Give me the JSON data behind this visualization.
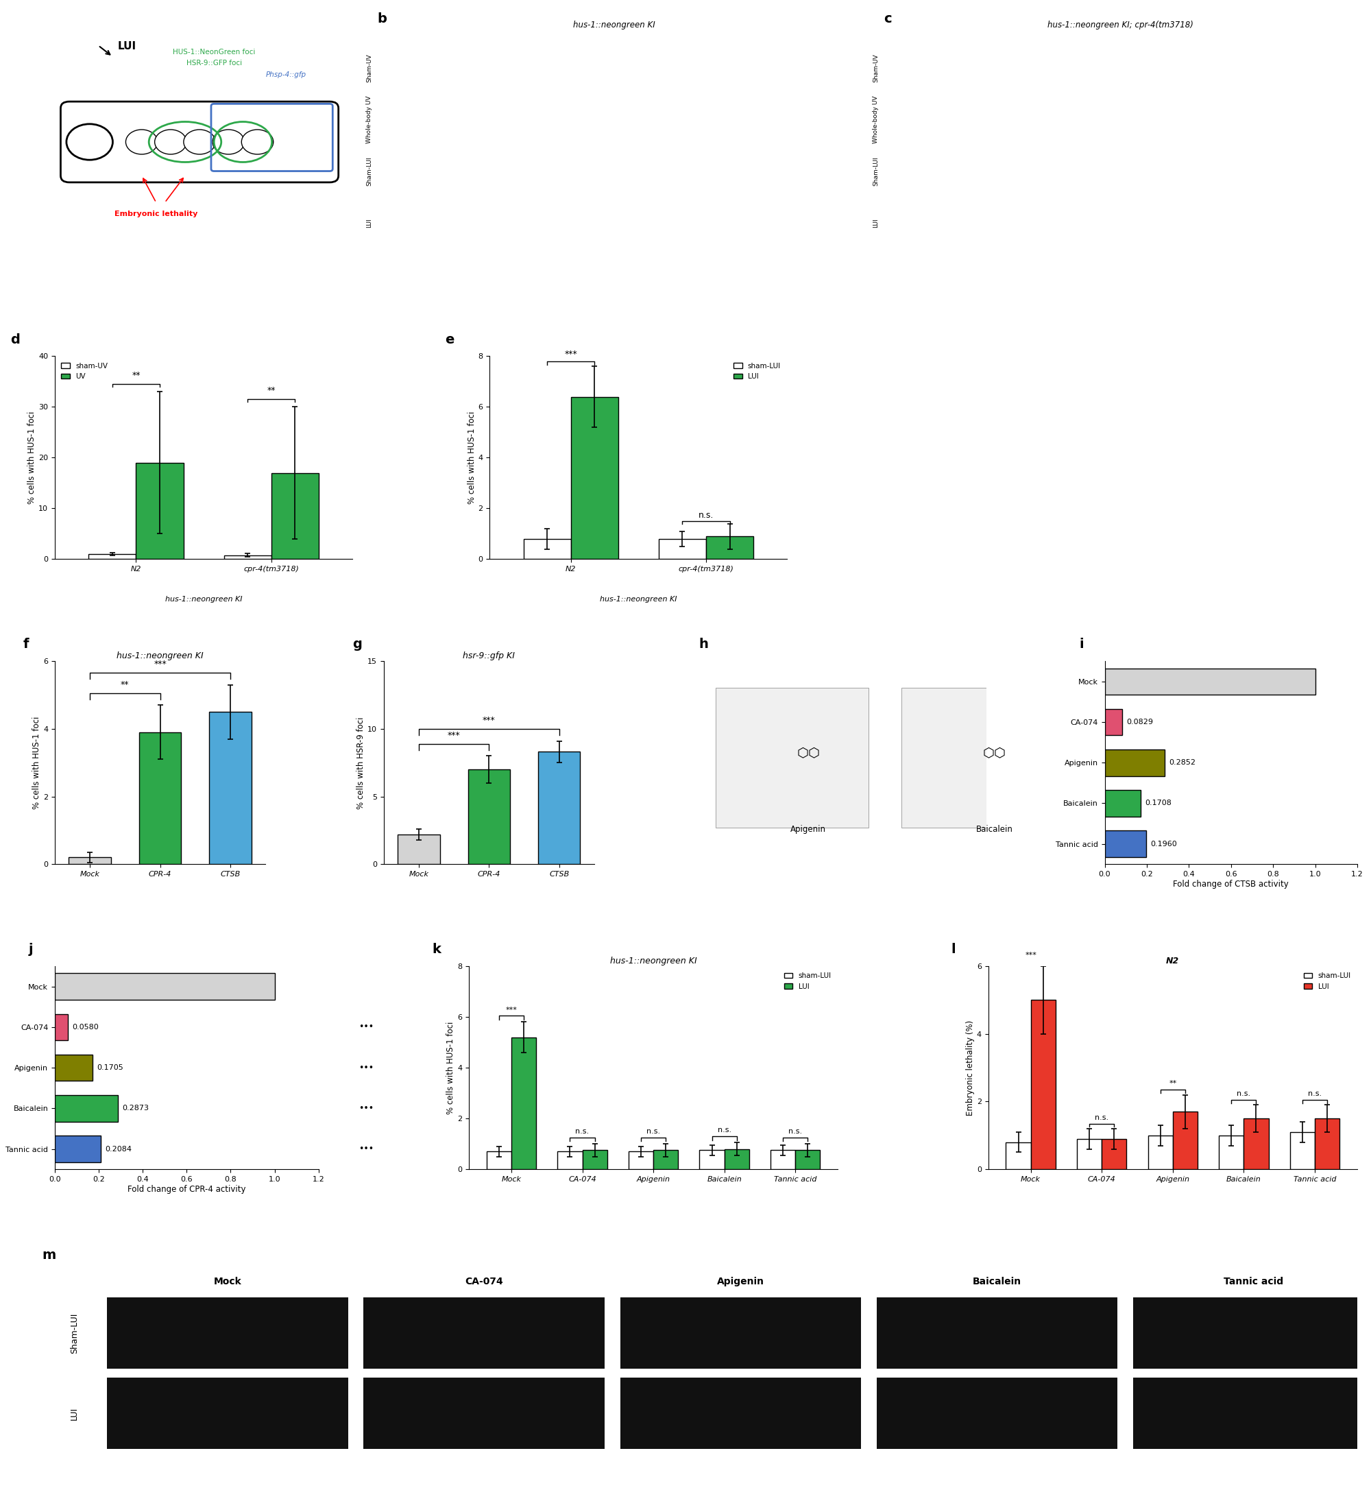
{
  "panel_d": {
    "title": "",
    "subtitle": "hus-1::neongreen KI",
    "xlabel_groups": [
      "N2",
      "cpr-4(tm3718)"
    ],
    "group_xlabel": "hus-1::neongreen KI",
    "legend": [
      "sham-UV",
      "UV"
    ],
    "bar_colors": [
      "white",
      "#2da84a"
    ],
    "values": [
      [
        1.0,
        19.0
      ],
      [
        0.8,
        17.0
      ]
    ],
    "errors": [
      [
        0.3,
        14.0
      ],
      [
        0.3,
        13.0
      ]
    ],
    "ylabel": "% cells with HUS-1 foci",
    "ylim": [
      0,
      40
    ],
    "yticks": [
      0,
      10,
      20,
      30,
      40
    ],
    "significance": [
      "**",
      "**"
    ]
  },
  "panel_e": {
    "title": "",
    "subtitle": "hus-1::neongreen KI",
    "xlabel_groups": [
      "N2",
      "cpr-4(tm3718)"
    ],
    "group_xlabel": "hus-1::neongreen KI",
    "legend": [
      "sham-LUI",
      "LUI"
    ],
    "bar_colors": [
      "white",
      "#2da84a"
    ],
    "values": [
      [
        0.8,
        6.4
      ],
      [
        0.8,
        0.9
      ]
    ],
    "errors": [
      [
        0.4,
        1.2
      ],
      [
        0.3,
        0.5
      ]
    ],
    "ylabel": "% cells with HUS-1 foci",
    "ylim": [
      0,
      8
    ],
    "yticks": [
      0,
      2,
      4,
      6,
      8
    ],
    "significance": [
      "***",
      "n.s."
    ]
  },
  "panel_f": {
    "title": "hus-1::neongreen KI",
    "categories": [
      "Mock",
      "CPR-4",
      "CTSB"
    ],
    "bar_colors": [
      "#d3d3d3",
      "#2da84a",
      "#4fa8d8"
    ],
    "values": [
      0.2,
      3.9,
      4.5
    ],
    "errors": [
      0.15,
      0.8,
      0.8
    ],
    "ylabel": "% cells with HUS-1 foci",
    "ylim": [
      0,
      6
    ],
    "yticks": [
      0,
      2,
      4,
      6
    ],
    "significance_pairs": [
      [
        "Mock",
        "CPR-4",
        "**"
      ],
      [
        "Mock",
        "CTSB",
        "***"
      ]
    ]
  },
  "panel_g": {
    "title": "hsr-9::gfp KI",
    "categories": [
      "Mock",
      "CPR-4",
      "CTSB"
    ],
    "bar_colors": [
      "#d3d3d3",
      "#2da84a",
      "#4fa8d8"
    ],
    "values": [
      2.2,
      7.0,
      8.3
    ],
    "errors": [
      0.4,
      1.0,
      0.8
    ],
    "ylabel": "% cells with HSR-9 foci",
    "ylim": [
      0,
      15
    ],
    "yticks": [
      0,
      5,
      10,
      15
    ],
    "significance_pairs": [
      [
        "Mock",
        "CPR-4",
        "***"
      ],
      [
        "Mock",
        "CTSB",
        "***"
      ]
    ]
  },
  "panel_i": {
    "title": "",
    "categories": [
      "Tannic acid",
      "Baicalein",
      "Apigenin",
      "CA-074",
      "Mock"
    ],
    "bar_colors": [
      "#4472c4",
      "#2da84a",
      "#7f7f00",
      "#e05070",
      "#d3d3d3"
    ],
    "values": [
      0.196,
      0.1708,
      0.2852,
      0.0829,
      1.0
    ],
    "labels": [
      "0.1960",
      "0.1708",
      "0.2852",
      "0.0829",
      ""
    ],
    "xlabel": "Fold change of CTSB activity",
    "xlim": [
      0,
      1.2
    ],
    "xticks": [
      0.0,
      0.2,
      0.4,
      0.6,
      0.8,
      1.0,
      1.2
    ]
  },
  "panel_j": {
    "title": "",
    "categories": [
      "Tannic acid",
      "Baicalein",
      "Apigenin",
      "CA-074",
      "Mock"
    ],
    "bar_colors": [
      "#4472c4",
      "#2da84a",
      "#7f7f00",
      "#e05070",
      "#d3d3d3"
    ],
    "values": [
      0.2084,
      0.2873,
      0.1705,
      0.058,
      1.0
    ],
    "labels": [
      "0.2084",
      "0.2873",
      "0.1705",
      "0.0580",
      ""
    ],
    "xlabel": "Fold change of CPR-4 activity",
    "xlim": [
      0,
      1.2
    ],
    "xticks": [
      0.0,
      0.2,
      0.4,
      0.6,
      0.8,
      1.0,
      1.2
    ]
  },
  "panel_k": {
    "title": "hus-1::neongreen KI",
    "categories": [
      "Mock",
      "CA-074",
      "Apigenin",
      "Baicalein",
      "Tannic acid"
    ],
    "legend": [
      "sham-LUI",
      "LUI"
    ],
    "bar_colors": [
      "white",
      "#2da84a"
    ],
    "values": [
      [
        0.7,
        5.2
      ],
      [
        0.7,
        0.75
      ],
      [
        0.7,
        0.75
      ],
      [
        0.75,
        0.8
      ],
      [
        0.75,
        0.75
      ]
    ],
    "errors": [
      [
        0.2,
        0.6
      ],
      [
        0.2,
        0.25
      ],
      [
        0.2,
        0.25
      ],
      [
        0.2,
        0.25
      ],
      [
        0.2,
        0.25
      ]
    ],
    "ylabel": "% cells with HUS-1 foci",
    "ylim": [
      0,
      8
    ],
    "yticks": [
      0,
      2,
      4,
      6,
      8
    ],
    "significance": [
      "***",
      "n.s.",
      "n.s.",
      "n.s.",
      "n.s."
    ]
  },
  "panel_l": {
    "title": "N2",
    "categories": [
      "Mock",
      "CA-074",
      "Apigenin",
      "Baicalein",
      "Tannic acid"
    ],
    "legend": [
      "sham-LUI",
      "LUI"
    ],
    "bar_colors": [
      "white",
      "#e8372a"
    ],
    "values": [
      [
        0.8,
        5.0
      ],
      [
        0.9,
        0.9
      ],
      [
        1.0,
        1.7
      ],
      [
        1.0,
        1.5
      ],
      [
        1.1,
        1.5
      ]
    ],
    "errors": [
      [
        0.3,
        1.0
      ],
      [
        0.3,
        0.3
      ],
      [
        0.3,
        0.5
      ],
      [
        0.3,
        0.4
      ],
      [
        0.3,
        0.4
      ]
    ],
    "ylabel": "Embryonic lethality (%)",
    "ylim": [
      0,
      6
    ],
    "yticks": [
      0,
      2,
      4,
      6
    ],
    "significance": [
      "***",
      "n.s.",
      "**",
      "n.s.",
      "n.s."
    ]
  },
  "bg_color": "#ffffff",
  "bar_edge_color": "#000000",
  "error_color": "#000000"
}
